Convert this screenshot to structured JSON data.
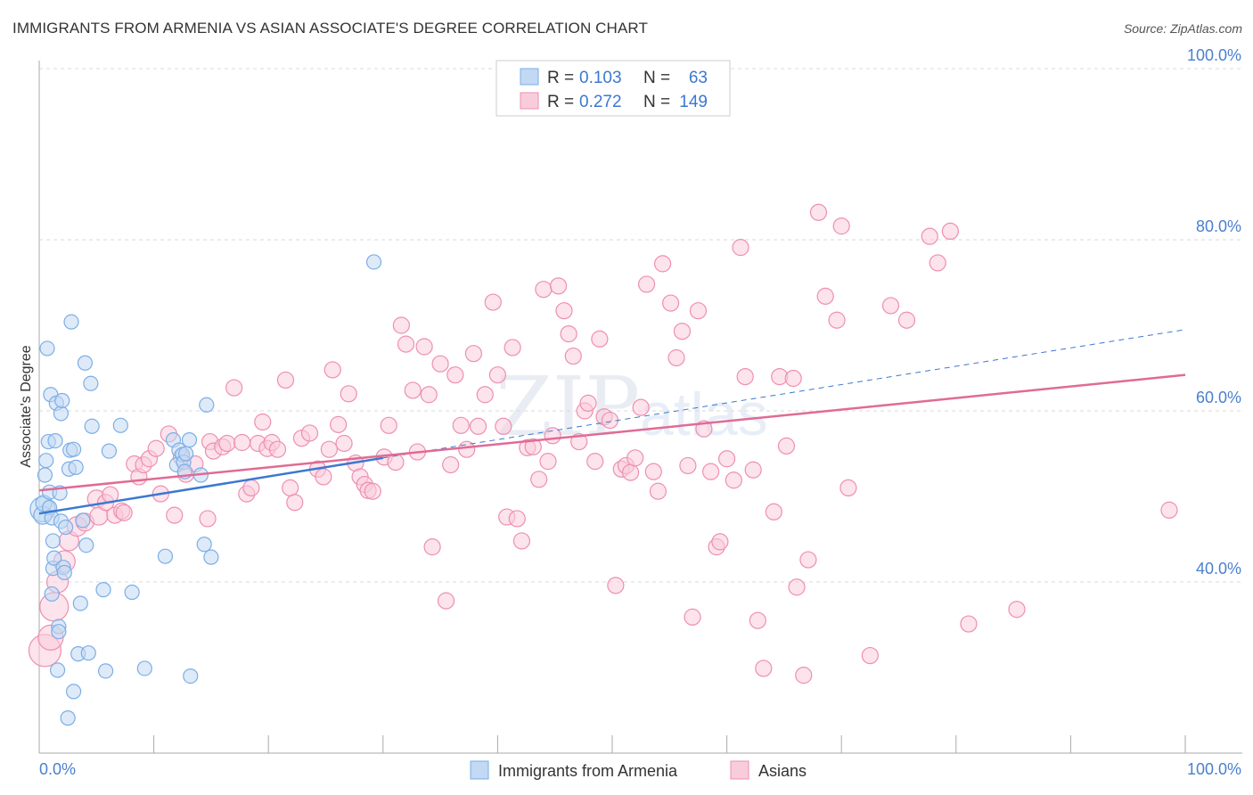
{
  "header": {
    "title": "IMMIGRANTS FROM ARMENIA VS ASIAN ASSOCIATE'S DEGREE CORRELATION CHART",
    "source": "Source: ZipAtlas.com"
  },
  "watermark": {
    "zip": "ZIP",
    "atlas": "atlas"
  },
  "colors": {
    "blue": "#7baee8",
    "blue_fill": "#c2d8f3",
    "blue_line": "#3b78d0",
    "pink": "#ee8fb0",
    "pink_fill": "#f9ccdc",
    "pink_line": "#e06b95",
    "axis_text": "#4a7fcf",
    "grid": "#d9d9d9"
  },
  "legend_top": [
    {
      "r_label": "R =",
      "r_value": "0.103",
      "n_label": "N =",
      "n_value": "63"
    },
    {
      "r_label": "R =",
      "r_value": "0.272",
      "n_label": "N =",
      "n_value": "149"
    }
  ],
  "chart_data": {
    "type": "scatter",
    "title": "IMMIGRANTS FROM ARMENIA VS ASIAN ASSOCIATE'S DEGREE CORRELATION CHART",
    "xlabel": "",
    "ylabel": "Associate's Degree",
    "xlim": [
      0,
      100
    ],
    "ylim": [
      20,
      100
    ],
    "x_tick_labels": [
      "0.0%",
      "100.0%"
    ],
    "y_tick_labels": [
      "40.0%",
      "60.0%",
      "80.0%",
      "100.0%"
    ],
    "y_ticks": [
      40,
      60,
      80,
      100
    ],
    "legend": [
      "Immigrants from Armenia",
      "Asians"
    ],
    "series": [
      {
        "name": "Immigrants from Armenia",
        "r": 0.103,
        "n": 63,
        "trend": {
          "x0": 0,
          "y0": 48.0,
          "x1": 30,
          "y1": 54.5,
          "dash_to_x": 100,
          "dash_to_y": 69.5
        },
        "points": [
          [
            0.3,
            48.5,
            14
          ],
          [
            0.3,
            47.8,
            10
          ],
          [
            0.4,
            49.2,
            9
          ],
          [
            0.5,
            52.5,
            8
          ],
          [
            0.6,
            54.2,
            8
          ],
          [
            0.7,
            67.3,
            8
          ],
          [
            0.8,
            56.4,
            8
          ],
          [
            0.9,
            50.5,
            8
          ],
          [
            0.9,
            48.7,
            8
          ],
          [
            1.0,
            61.9,
            8
          ],
          [
            1.1,
            47.5,
            8
          ],
          [
            1.1,
            38.6,
            8
          ],
          [
            1.2,
            41.6,
            8
          ],
          [
            1.2,
            44.8,
            8
          ],
          [
            1.3,
            42.8,
            8
          ],
          [
            1.4,
            56.5,
            8
          ],
          [
            1.5,
            60.9,
            8
          ],
          [
            1.6,
            29.7,
            8
          ],
          [
            1.7,
            34.8,
            8
          ],
          [
            1.7,
            34.2,
            8
          ],
          [
            1.8,
            50.4,
            8
          ],
          [
            1.9,
            59.7,
            8
          ],
          [
            1.9,
            47.1,
            8
          ],
          [
            2.0,
            61.2,
            8
          ],
          [
            2.1,
            41.7,
            8
          ],
          [
            2.2,
            41.1,
            8
          ],
          [
            2.3,
            46.4,
            8
          ],
          [
            2.5,
            24.1,
            8
          ],
          [
            2.6,
            53.2,
            8
          ],
          [
            2.7,
            55.4,
            8
          ],
          [
            2.8,
            70.4,
            8
          ],
          [
            3.0,
            55.5,
            8
          ],
          [
            3.0,
            27.2,
            8
          ],
          [
            3.2,
            53.4,
            8
          ],
          [
            3.4,
            31.6,
            8
          ],
          [
            3.6,
            37.5,
            8
          ],
          [
            3.8,
            47.2,
            8
          ],
          [
            4.0,
            65.6,
            8
          ],
          [
            4.1,
            44.3,
            8
          ],
          [
            4.3,
            31.7,
            8
          ],
          [
            4.5,
            63.2,
            8
          ],
          [
            4.6,
            58.2,
            8
          ],
          [
            5.6,
            39.1,
            8
          ],
          [
            5.8,
            29.6,
            8
          ],
          [
            6.1,
            55.3,
            8
          ],
          [
            7.1,
            58.3,
            8
          ],
          [
            8.1,
            38.8,
            8
          ],
          [
            9.2,
            29.9,
            8
          ],
          [
            11.0,
            43.0,
            8
          ],
          [
            11.7,
            56.6,
            8
          ],
          [
            12.0,
            53.7,
            8
          ],
          [
            12.2,
            55.4,
            8
          ],
          [
            12.5,
            54.9,
            8
          ],
          [
            12.6,
            54.0,
            8
          ],
          [
            12.7,
            52.9,
            8
          ],
          [
            12.8,
            55.0,
            8
          ],
          [
            13.1,
            56.6,
            8
          ],
          [
            13.2,
            29.0,
            8
          ],
          [
            14.1,
            52.5,
            8
          ],
          [
            14.4,
            44.4,
            8
          ],
          [
            14.6,
            60.7,
            8
          ],
          [
            15.0,
            42.9,
            8
          ],
          [
            29.2,
            77.4,
            8
          ]
        ]
      },
      {
        "name": "Asians",
        "r": 0.272,
        "n": 149,
        "trend": {
          "x0": 0,
          "y0": 50.7,
          "x1": 100,
          "y1": 64.2
        },
        "points": [
          [
            0.5,
            32.0,
            18
          ],
          [
            1.0,
            33.5,
            14
          ],
          [
            1.3,
            37.1,
            16
          ],
          [
            1.6,
            40.0,
            12
          ],
          [
            2.2,
            42.4,
            12
          ],
          [
            2.6,
            44.8,
            11
          ],
          [
            3.3,
            46.5,
            11
          ],
          [
            4.0,
            47.0,
            10
          ],
          [
            5.0,
            49.7,
            10
          ],
          [
            5.2,
            47.7,
            10
          ],
          [
            5.8,
            49.3,
            9
          ],
          [
            6.2,
            50.2,
            9
          ],
          [
            6.6,
            47.8,
            9
          ],
          [
            7.2,
            48.3,
            9
          ],
          [
            7.4,
            48.1,
            9
          ],
          [
            8.3,
            53.8,
            9
          ],
          [
            8.7,
            52.3,
            9
          ],
          [
            9.1,
            53.7,
            9
          ],
          [
            9.6,
            54.4,
            9
          ],
          [
            10.2,
            55.6,
            9
          ],
          [
            10.6,
            50.3,
            9
          ],
          [
            11.3,
            57.3,
            9
          ],
          [
            11.8,
            47.8,
            9
          ],
          [
            12.4,
            54.6,
            9
          ],
          [
            12.8,
            52.6,
            9
          ],
          [
            13.6,
            53.8,
            9
          ],
          [
            14.7,
            47.4,
            9
          ],
          [
            14.9,
            56.4,
            9
          ],
          [
            15.2,
            55.3,
            9
          ],
          [
            16.0,
            55.8,
            9
          ],
          [
            16.4,
            56.2,
            9
          ],
          [
            17.0,
            62.7,
            9
          ],
          [
            17.7,
            56.3,
            9
          ],
          [
            18.1,
            50.3,
            9
          ],
          [
            18.5,
            51.0,
            9
          ],
          [
            19.1,
            56.2,
            9
          ],
          [
            19.5,
            58.7,
            9
          ],
          [
            19.9,
            55.6,
            9
          ],
          [
            20.3,
            56.3,
            9
          ],
          [
            20.8,
            55.5,
            9
          ],
          [
            21.5,
            63.6,
            9
          ],
          [
            21.9,
            51.0,
            9
          ],
          [
            22.3,
            49.3,
            9
          ],
          [
            22.9,
            56.8,
            9
          ],
          [
            23.6,
            57.4,
            9
          ],
          [
            24.3,
            53.2,
            9
          ],
          [
            24.8,
            52.3,
            9
          ],
          [
            25.3,
            55.5,
            9
          ],
          [
            25.6,
            64.8,
            9
          ],
          [
            26.1,
            58.4,
            9
          ],
          [
            26.6,
            56.2,
            9
          ],
          [
            27.0,
            62.0,
            9
          ],
          [
            27.6,
            53.9,
            9
          ],
          [
            28.0,
            52.3,
            9
          ],
          [
            28.4,
            51.4,
            9
          ],
          [
            28.7,
            50.7,
            9
          ],
          [
            29.1,
            50.6,
            9
          ],
          [
            30.1,
            54.6,
            9
          ],
          [
            30.5,
            58.3,
            9
          ],
          [
            31.1,
            54.0,
            9
          ],
          [
            31.6,
            70.0,
            9
          ],
          [
            32.0,
            67.8,
            9
          ],
          [
            32.6,
            62.4,
            9
          ],
          [
            33.0,
            55.2,
            9
          ],
          [
            33.6,
            67.5,
            9
          ],
          [
            34.0,
            61.9,
            9
          ],
          [
            34.3,
            44.1,
            9
          ],
          [
            35.0,
            65.5,
            9
          ],
          [
            35.5,
            37.8,
            9
          ],
          [
            35.9,
            53.7,
            9
          ],
          [
            36.3,
            64.2,
            9
          ],
          [
            36.8,
            58.3,
            9
          ],
          [
            37.3,
            55.5,
            9
          ],
          [
            37.9,
            66.7,
            9
          ],
          [
            38.3,
            58.2,
            9
          ],
          [
            38.9,
            61.9,
            9
          ],
          [
            39.6,
            72.7,
            9
          ],
          [
            40.0,
            64.2,
            9
          ],
          [
            40.5,
            58.2,
            9
          ],
          [
            40.8,
            47.6,
            9
          ],
          [
            41.3,
            67.4,
            9
          ],
          [
            41.7,
            47.4,
            9
          ],
          [
            42.1,
            44.8,
            9
          ],
          [
            42.6,
            55.7,
            9
          ],
          [
            43.1,
            55.8,
            9
          ],
          [
            43.6,
            52.0,
            9
          ],
          [
            44.0,
            74.2,
            9
          ],
          [
            44.4,
            54.1,
            9
          ],
          [
            44.8,
            57.1,
            9
          ],
          [
            45.3,
            74.6,
            9
          ],
          [
            45.8,
            71.7,
            9
          ],
          [
            46.2,
            69.0,
            9
          ],
          [
            46.6,
            66.4,
            9
          ],
          [
            47.1,
            56.4,
            9
          ],
          [
            47.6,
            60.0,
            9
          ],
          [
            47.9,
            60.9,
            9
          ],
          [
            48.5,
            54.1,
            9
          ],
          [
            48.9,
            68.4,
            9
          ],
          [
            49.3,
            59.3,
            9
          ],
          [
            49.8,
            58.9,
            9
          ],
          [
            50.3,
            39.6,
            9
          ],
          [
            50.8,
            53.2,
            9
          ],
          [
            51.2,
            53.6,
            9
          ],
          [
            51.6,
            52.8,
            9
          ],
          [
            52.0,
            54.5,
            9
          ],
          [
            52.5,
            60.4,
            9
          ],
          [
            53.0,
            74.8,
            9
          ],
          [
            53.6,
            52.9,
            9
          ],
          [
            54.0,
            50.6,
            9
          ],
          [
            54.4,
            77.2,
            9
          ],
          [
            55.1,
            72.6,
            9
          ],
          [
            55.6,
            66.2,
            9
          ],
          [
            56.1,
            69.3,
            9
          ],
          [
            56.6,
            53.6,
            9
          ],
          [
            57.0,
            35.9,
            9
          ],
          [
            57.5,
            71.7,
            9
          ],
          [
            58.0,
            57.9,
            9
          ],
          [
            58.6,
            52.9,
            9
          ],
          [
            59.1,
            44.1,
            9
          ],
          [
            59.4,
            44.7,
            9
          ],
          [
            60.0,
            54.4,
            9
          ],
          [
            60.6,
            51.9,
            9
          ],
          [
            61.2,
            79.1,
            9
          ],
          [
            61.6,
            64.0,
            9
          ],
          [
            62.3,
            53.1,
            9
          ],
          [
            62.7,
            35.5,
            9
          ],
          [
            63.2,
            29.9,
            9
          ],
          [
            64.1,
            48.2,
            9
          ],
          [
            64.6,
            64.0,
            9
          ],
          [
            65.2,
            55.9,
            9
          ],
          [
            65.8,
            63.8,
            9
          ],
          [
            66.1,
            39.4,
            9
          ],
          [
            66.7,
            29.1,
            9
          ],
          [
            67.1,
            42.6,
            9
          ],
          [
            68.0,
            83.2,
            9
          ],
          [
            68.6,
            73.4,
            9
          ],
          [
            69.6,
            70.6,
            9
          ],
          [
            70.0,
            81.6,
            9
          ],
          [
            70.6,
            51.0,
            9
          ],
          [
            72.5,
            31.4,
            9
          ],
          [
            74.3,
            72.3,
            9
          ],
          [
            75.7,
            70.6,
            9
          ],
          [
            77.7,
            80.4,
            9
          ],
          [
            78.4,
            77.3,
            9
          ],
          [
            79.5,
            81.0,
            9
          ],
          [
            81.1,
            35.1,
            9
          ],
          [
            85.3,
            36.8,
            9
          ],
          [
            98.6,
            48.4,
            9
          ]
        ]
      }
    ]
  }
}
